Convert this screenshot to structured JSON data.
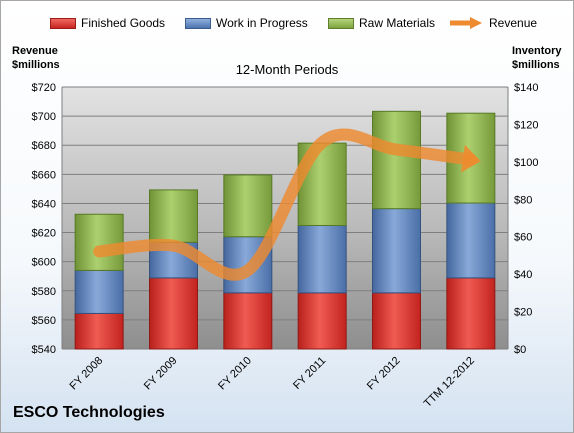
{
  "legend": {
    "items": [
      {
        "label": "Finished Goods",
        "color": "#e4342f"
      },
      {
        "label": "Work in Progress",
        "color": "#5b82bd"
      },
      {
        "label": "Raw Materials",
        "color": "#8eb54c"
      },
      {
        "label": "Revenue",
        "color": "#ee8a2f"
      }
    ]
  },
  "header": {
    "left_axis_title_line1": "Revenue",
    "left_axis_title_line2": "$millions",
    "right_axis_title_line1": "Inventory",
    "right_axis_title_line2": "$millions",
    "subtitle": "12-Month Periods"
  },
  "footer": {
    "company": "ESCO Technologies"
  },
  "chart_data": {
    "type": "bar",
    "subtype": "stacked-bar-with-line",
    "title": "",
    "subtitle": "12-Month Periods",
    "categories": [
      "FY 2008",
      "FY 2009",
      "FY 2010",
      "FY 2011",
      "FY 2012",
      "TTM 12-2012"
    ],
    "series": [
      {
        "name": "Finished Goods",
        "axis": "right",
        "color": "#e4342f",
        "values": [
          19,
          38,
          30,
          30,
          30,
          38
        ]
      },
      {
        "name": "Work in Progress",
        "axis": "right",
        "color": "#5b82bd",
        "values": [
          23,
          19,
          30,
          36,
          45,
          40
        ]
      },
      {
        "name": "Raw Materials",
        "axis": "right",
        "color": "#8eb54c",
        "values": [
          30,
          28,
          33,
          44,
          52,
          48
        ]
      },
      {
        "name": "Revenue",
        "axis": "left",
        "type": "line",
        "color": "#ee8a2f",
        "values": [
          607,
          611,
          594,
          682,
          677,
          670
        ]
      }
    ],
    "y_left": {
      "label": "Revenue $millions",
      "min": 540,
      "max": 720,
      "step": 20,
      "ticks": [
        "$540",
        "$560",
        "$580",
        "$600",
        "$620",
        "$640",
        "$660",
        "$680",
        "$700",
        "$720"
      ]
    },
    "y_right": {
      "label": "Inventory $millions",
      "min": 0,
      "max": 140,
      "step": 20,
      "ticks": [
        "$0",
        "$20",
        "$40",
        "$60",
        "$80",
        "$100",
        "$120",
        "$140"
      ]
    },
    "grid": true,
    "legend_position": "top"
  }
}
